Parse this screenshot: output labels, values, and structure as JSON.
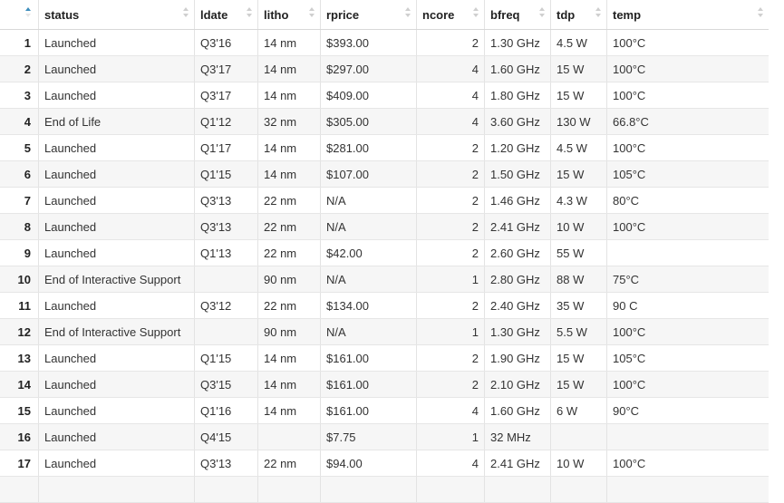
{
  "table": {
    "columns": [
      "",
      "status",
      "ldate",
      "litho",
      "rprice",
      "ncore",
      "bfreq",
      "tdp",
      "temp"
    ],
    "rows": [
      [
        "1",
        "Launched",
        "Q3'16",
        "14 nm",
        "$393.00",
        "2",
        "1.30 GHz",
        "4.5 W",
        "100°C"
      ],
      [
        "2",
        "Launched",
        "Q3'17",
        "14 nm",
        "$297.00",
        "4",
        "1.60 GHz",
        "15 W",
        "100°C"
      ],
      [
        "3",
        "Launched",
        "Q3'17",
        "14 nm",
        "$409.00",
        "4",
        "1.80 GHz",
        "15 W",
        "100°C"
      ],
      [
        "4",
        "End of Life",
        "Q1'12",
        "32 nm",
        "$305.00",
        "4",
        "3.60 GHz",
        "130 W",
        "66.8°C"
      ],
      [
        "5",
        "Launched",
        "Q1'17",
        "14 nm",
        "$281.00",
        "2",
        "1.20 GHz",
        "4.5 W",
        "100°C"
      ],
      [
        "6",
        "Launched",
        "Q1'15",
        "14 nm",
        "$107.00",
        "2",
        "1.50 GHz",
        "15 W",
        "105°C"
      ],
      [
        "7",
        "Launched",
        "Q3'13",
        "22 nm",
        "N/A",
        "2",
        "1.46 GHz",
        "4.3 W",
        "80°C"
      ],
      [
        "8",
        "Launched",
        "Q3'13",
        "22 nm",
        "N/A",
        "2",
        "2.41 GHz",
        "10 W",
        "100°C"
      ],
      [
        "9",
        "Launched",
        "Q1'13",
        "22 nm",
        "$42.00",
        "2",
        "2.60 GHz",
        "55 W",
        ""
      ],
      [
        "10",
        "End of Interactive Support",
        "",
        "90 nm",
        "N/A",
        "1",
        "2.80 GHz",
        "88 W",
        "75°C"
      ],
      [
        "11",
        "Launched",
        "Q3'12",
        "22 nm",
        "$134.00",
        "2",
        "2.40 GHz",
        "35 W",
        "90 C"
      ],
      [
        "12",
        "End of Interactive Support",
        "",
        "90 nm",
        "N/A",
        "1",
        "1.30 GHz",
        "5.5 W",
        "100°C"
      ],
      [
        "13",
        "Launched",
        "Q1'15",
        "14 nm",
        "$161.00",
        "2",
        "1.90 GHz",
        "15 W",
        "105°C"
      ],
      [
        "14",
        "Launched",
        "Q3'15",
        "14 nm",
        "$161.00",
        "2",
        "2.10 GHz",
        "15 W",
        "100°C"
      ],
      [
        "15",
        "Launched",
        "Q1'16",
        "14 nm",
        "$161.00",
        "4",
        "1.60 GHz",
        "6 W",
        "90°C"
      ],
      [
        "16",
        "Launched",
        "Q4'15",
        "",
        "$7.75",
        "1",
        "32 MHz",
        "",
        ""
      ],
      [
        "17",
        "Launched",
        "Q3'13",
        "22 nm",
        "$94.00",
        "4",
        "2.41 GHz",
        "10 W",
        "100°C"
      ],
      [
        "",
        "",
        "",
        "",
        "",
        "",
        "",
        "",
        ""
      ]
    ]
  }
}
